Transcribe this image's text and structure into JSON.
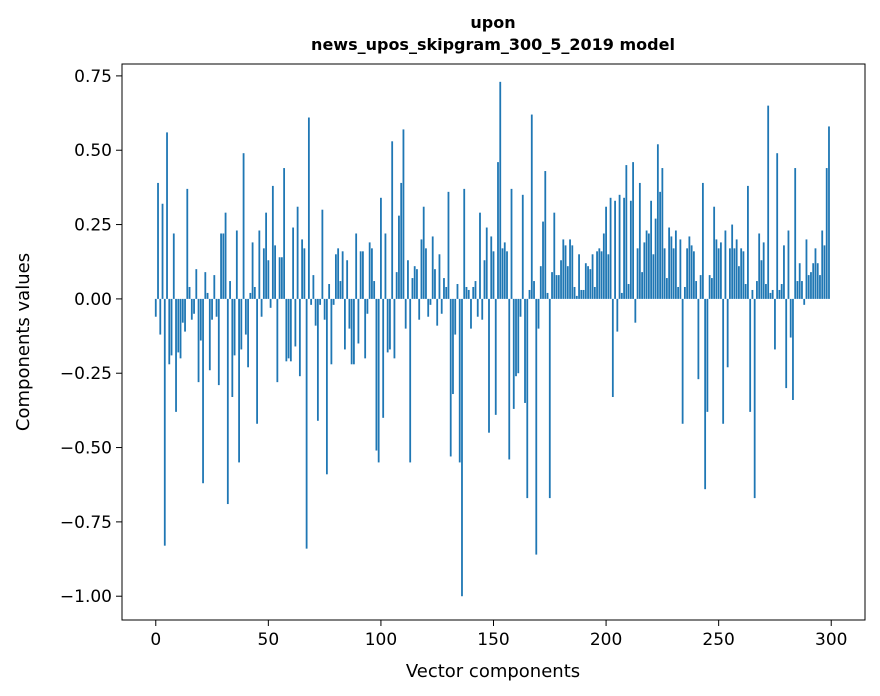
{
  "chart_data": {
    "type": "bar",
    "title": "upon",
    "subtitle": "news_upos_skipgram_300_5_2019 model",
    "xlabel": "Vector components",
    "ylabel": "Components values",
    "xlim": [
      -15,
      315
    ],
    "ylim": [
      -1.08,
      0.79
    ],
    "xticks": [
      0,
      50,
      100,
      150,
      200,
      250,
      300
    ],
    "yticks": [
      -1.0,
      -0.75,
      -0.5,
      -0.25,
      0.0,
      0.25,
      0.5,
      0.75
    ],
    "xtick_labels": [
      "0",
      "50",
      "100",
      "150",
      "200",
      "250",
      "300"
    ],
    "ytick_labels": [
      "−1.00",
      "−0.75",
      "−0.50",
      "−0.25",
      "0.00",
      "0.25",
      "0.50",
      "0.75"
    ],
    "bar_color": "#1f77b4",
    "values": [
      -0.06,
      0.39,
      -0.12,
      0.32,
      -0.83,
      0.56,
      -0.22,
      -0.19,
      0.22,
      -0.38,
      -0.18,
      -0.2,
      -0.08,
      -0.11,
      0.37,
      0.04,
      -0.07,
      -0.05,
      0.1,
      -0.28,
      -0.14,
      -0.62,
      0.09,
      0.02,
      -0.24,
      -0.07,
      0.08,
      -0.06,
      -0.29,
      0.22,
      0.22,
      0.29,
      -0.69,
      0.06,
      -0.33,
      -0.19,
      0.23,
      -0.55,
      -0.17,
      0.49,
      -0.12,
      -0.23,
      0.02,
      0.19,
      0.04,
      -0.42,
      0.23,
      -0.06,
      0.17,
      0.29,
      0.13,
      -0.03,
      0.38,
      0.18,
      -0.28,
      0.14,
      0.14,
      0.44,
      -0.21,
      -0.2,
      -0.21,
      0.24,
      -0.16,
      0.31,
      -0.26,
      0.2,
      0.17,
      -0.84,
      0.61,
      -0.02,
      0.08,
      -0.09,
      -0.41,
      -0.02,
      0.3,
      -0.07,
      -0.59,
      0.05,
      -0.22,
      -0.02,
      0.15,
      0.17,
      0.06,
      0.16,
      -0.17,
      0.13,
      -0.1,
      -0.22,
      -0.22,
      0.22,
      -0.15,
      0.16,
      0.16,
      -0.2,
      -0.05,
      0.19,
      0.17,
      0.06,
      -0.51,
      -0.55,
      0.34,
      -0.4,
      0.22,
      -0.18,
      -0.17,
      0.53,
      -0.2,
      0.09,
      0.28,
      0.39,
      0.57,
      -0.1,
      0.13,
      -0.55,
      0.07,
      0.11,
      0.1,
      -0.07,
      0.2,
      0.31,
      0.17,
      -0.06,
      -0.02,
      0.21,
      0.1,
      -0.09,
      0.15,
      -0.05,
      0.07,
      0.04,
      0.36,
      -0.53,
      -0.32,
      -0.12,
      0.05,
      -0.55,
      -1.0,
      0.37,
      0.04,
      0.03,
      -0.1,
      0.04,
      0.06,
      -0.06,
      0.29,
      -0.07,
      0.13,
      0.24,
      -0.45,
      0.21,
      0.16,
      -0.39,
      0.46,
      0.73,
      0.17,
      0.19,
      0.16,
      -0.54,
      0.37,
      -0.37,
      -0.26,
      -0.25,
      -0.06,
      0.35,
      -0.35,
      -0.67,
      0.03,
      0.62,
      0.06,
      -0.86,
      -0.1,
      0.11,
      0.26,
      0.43,
      0.02,
      -0.67,
      0.09,
      0.29,
      0.08,
      0.08,
      0.13,
      0.2,
      0.18,
      0.11,
      0.2,
      0.18,
      0.04,
      0.01,
      0.15,
      0.03,
      0.03,
      0.12,
      0.11,
      0.1,
      0.15,
      0.04,
      0.16,
      0.17,
      0.16,
      0.22,
      0.31,
      0.15,
      0.34,
      -0.33,
      0.33,
      -0.11,
      0.35,
      0.02,
      0.34,
      0.45,
      0.05,
      0.33,
      0.46,
      -0.08,
      0.17,
      0.39,
      0.09,
      0.19,
      0.23,
      0.22,
      0.33,
      0.15,
      0.27,
      0.52,
      0.36,
      0.44,
      0.17,
      0.07,
      0.24,
      0.21,
      0.17,
      0.23,
      0.04,
      0.2,
      -0.42,
      0.04,
      0.17,
      0.21,
      0.18,
      0.16,
      0.06,
      -0.27,
      0.08,
      0.39,
      -0.64,
      -0.38,
      0.08,
      0.07,
      0.31,
      0.2,
      0.17,
      0.19,
      -0.42,
      0.23,
      -0.23,
      0.17,
      0.25,
      0.17,
      0.2,
      0.11,
      0.17,
      0.16,
      0.05,
      0.38,
      -0.38,
      0.03,
      -0.67,
      0.06,
      0.22,
      0.13,
      0.19,
      0.05,
      0.65,
      0.02,
      0.03,
      -0.17,
      0.49,
      0.03,
      0.05,
      0.18,
      -0.3,
      0.23,
      -0.13,
      -0.34,
      0.44,
      0.06,
      0.12,
      0.06,
      -0.02,
      0.2,
      0.08,
      0.09,
      0.12,
      0.17,
      0.12,
      0.08,
      0.23,
      0.18,
      0.44,
      0.58
    ],
    "grid": false,
    "legend": "none"
  }
}
